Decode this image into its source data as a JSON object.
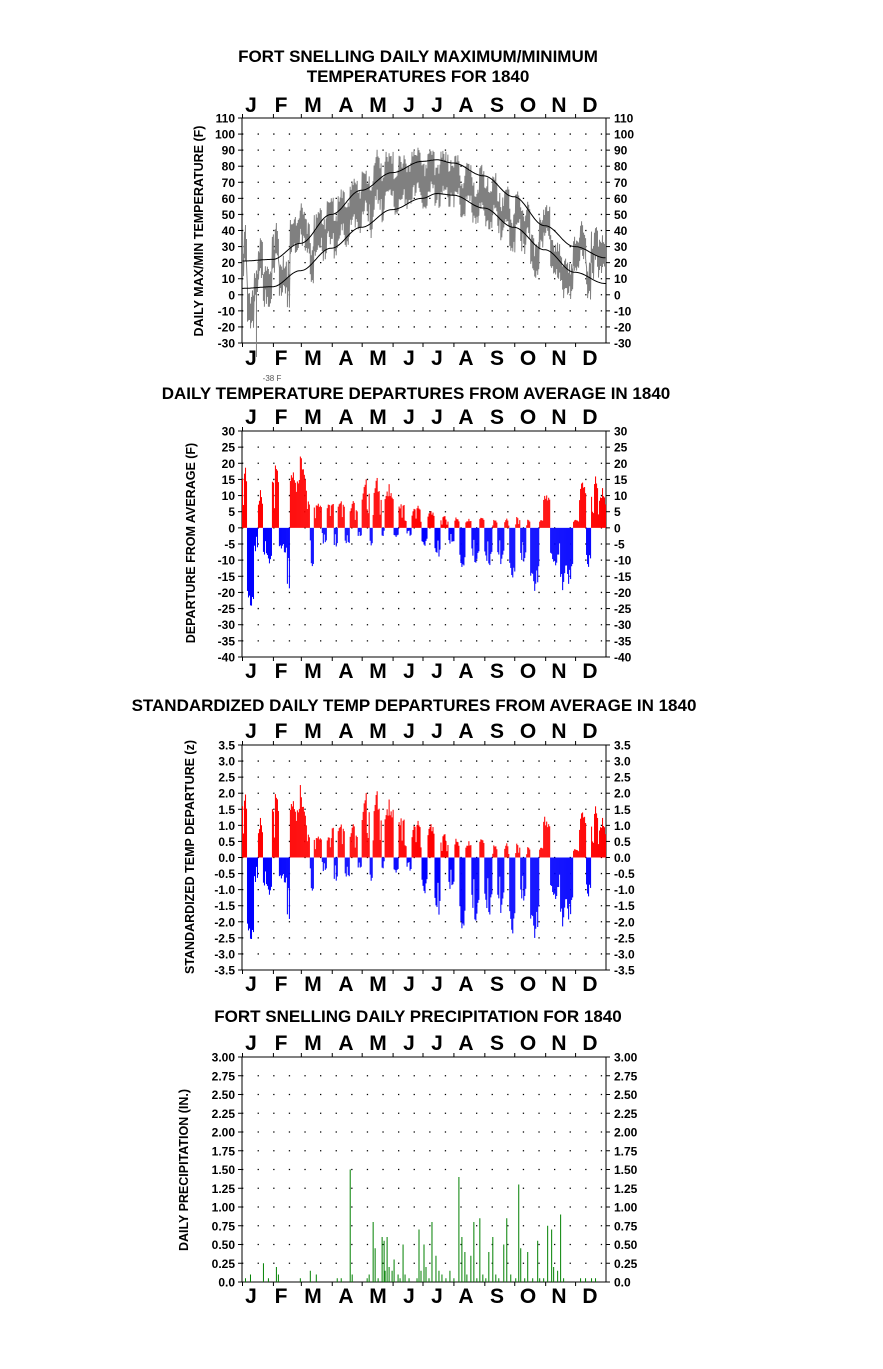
{
  "months": [
    "J",
    "F",
    "M",
    "A",
    "M",
    "J",
    "J",
    "A",
    "S",
    "O",
    "N",
    "D"
  ],
  "month_colors": {
    "frame": "#000000",
    "grid": "#000000"
  },
  "chart_data": [
    {
      "type": "line",
      "title_line1": "FORT SNELLING DAILY MAXIMUM/MINIMUM",
      "title_line2": "TEMPERATURES FOR 1840",
      "ylabel": "DAILY MAX/MIN TEMPERATURE (F)",
      "ylim": [
        -30,
        110
      ],
      "yticks": [
        110,
        100,
        90,
        80,
        70,
        60,
        50,
        40,
        30,
        20,
        10,
        0,
        -10,
        -20,
        -30
      ],
      "ytick_labels": [
        "110",
        "100",
        "90",
        "80",
        "70",
        "60",
        "50",
        "40",
        "30",
        "20",
        "10",
        "0",
        "-10",
        "-20",
        "-30"
      ],
      "annotation": "-38 F",
      "series": [
        {
          "color": "#808080",
          "normal_high_anchors": [
            [
              1,
              21
            ],
            [
              31,
              22
            ],
            [
              59,
              32
            ],
            [
              90,
              50
            ],
            [
              120,
              65
            ],
            [
              151,
              76
            ],
            [
              181,
              83
            ],
            [
              196,
              84
            ],
            [
              212,
              82
            ],
            [
              243,
              74
            ],
            [
              273,
              61
            ],
            [
              304,
              43
            ],
            [
              334,
              30
            ],
            [
              365,
              23
            ]
          ],
          "normal_low_anchors": [
            [
              1,
              4
            ],
            [
              31,
              5
            ],
            [
              59,
              15
            ],
            [
              90,
              29
            ],
            [
              120,
              42
            ],
            [
              151,
              53
            ],
            [
              181,
              60
            ],
            [
              196,
              63
            ],
            [
              212,
              62
            ],
            [
              243,
              54
            ],
            [
              273,
              42
            ],
            [
              304,
              28
            ],
            [
              334,
              14
            ],
            [
              365,
              7
            ]
          ]
        },
        {
          "color": "#000000"
        }
      ]
    },
    {
      "type": "bar",
      "title": "DAILY TEMPERATURE DEPARTURES FROM AVERAGE IN 1840",
      "ylabel": "DEPARTURE FROM AVERAGE (F)",
      "ylim": [
        -40,
        30
      ],
      "ytick_labels": [
        "30",
        "25",
        "20",
        "15",
        "10",
        "5",
        "0",
        "-5",
        "-10",
        "-15",
        "-20",
        "-25",
        "-30",
        "-35",
        "-40"
      ],
      "positive_color": "#ff0000",
      "negative_color": "#0000ff",
      "departure_runs": [
        [
          1,
          5,
          "+",
          10,
          21
        ],
        [
          6,
          12,
          "-",
          12,
          31
        ],
        [
          13,
          16,
          "-",
          3,
          8
        ],
        [
          17,
          21,
          "+",
          4,
          12
        ],
        [
          22,
          26,
          "-",
          4,
          12
        ],
        [
          27,
          30,
          "-",
          5,
          14
        ],
        [
          31,
          37,
          "+",
          8,
          22
        ],
        [
          38,
          42,
          "-",
          3,
          8
        ],
        [
          43,
          45,
          "-",
          3,
          10
        ],
        [
          46,
          48,
          "-",
          5,
          29
        ],
        [
          49,
          54,
          "+",
          8,
          20
        ],
        [
          55,
          65,
          "+",
          6,
          24
        ],
        [
          66,
          68,
          "+",
          3,
          10
        ],
        [
          69,
          72,
          "-",
          6,
          16
        ],
        [
          73,
          80,
          "+",
          3,
          10
        ],
        [
          81,
          85,
          "-",
          2,
          6
        ],
        [
          86,
          92,
          "+",
          3,
          11
        ],
        [
          93,
          96,
          "-",
          2,
          8
        ],
        [
          97,
          103,
          "+",
          4,
          10
        ],
        [
          104,
          108,
          "-",
          2,
          7
        ],
        [
          109,
          116,
          "+",
          3,
          9
        ],
        [
          117,
          120,
          "-",
          1,
          4
        ],
        [
          121,
          128,
          "+",
          5,
          17
        ],
        [
          129,
          131,
          "-",
          2,
          6
        ],
        [
          132,
          140,
          "+",
          5,
          16
        ],
        [
          141,
          143,
          "-",
          1,
          3
        ],
        [
          144,
          152,
          "+",
          4,
          14
        ],
        [
          153,
          157,
          "-",
          1,
          4
        ],
        [
          158,
          165,
          "+",
          3,
          10
        ],
        [
          166,
          170,
          "-",
          1,
          3
        ],
        [
          171,
          180,
          "+",
          2,
          8
        ],
        [
          181,
          186,
          "-",
          2,
          6
        ],
        [
          187,
          193,
          "+",
          2,
          6
        ],
        [
          194,
          199,
          "-",
          4,
          11
        ],
        [
          200,
          207,
          "+",
          1,
          4
        ],
        [
          208,
          213,
          "-",
          2,
          6
        ],
        [
          214,
          218,
          "+",
          1,
          4
        ],
        [
          219,
          224,
          "-",
          5,
          14
        ],
        [
          225,
          230,
          "+",
          1,
          3
        ],
        [
          231,
          238,
          "-",
          3,
          12
        ],
        [
          239,
          243,
          "+",
          1,
          4
        ],
        [
          244,
          251,
          "-",
          4,
          15
        ],
        [
          252,
          256,
          "+",
          1,
          3
        ],
        [
          257,
          263,
          "-",
          3,
          12
        ],
        [
          264,
          268,
          "+",
          1,
          3
        ],
        [
          269,
          274,
          "-",
          6,
          21
        ],
        [
          275,
          279,
          "+",
          1,
          4
        ],
        [
          280,
          285,
          "-",
          4,
          12
        ],
        [
          286,
          289,
          "+",
          1,
          3
        ],
        [
          290,
          298,
          "-",
          6,
          23
        ],
        [
          299,
          302,
          "+",
          1,
          3
        ],
        [
          303,
          309,
          "+",
          4,
          13
        ],
        [
          310,
          318,
          "-",
          4,
          13
        ],
        [
          319,
          325,
          "-",
          6,
          21
        ],
        [
          326,
          332,
          "-",
          4,
          20
        ],
        [
          333,
          338,
          "+",
          1,
          3
        ],
        [
          339,
          345,
          "+",
          5,
          16
        ],
        [
          346,
          350,
          "-",
          3,
          14
        ],
        [
          351,
          358,
          "+",
          5,
          17
        ],
        [
          359,
          365,
          "+",
          4,
          13
        ]
      ]
    },
    {
      "type": "bar",
      "title": "STANDARDIZED DAILY TEMP DEPARTURES FROM AVERAGE IN 1840",
      "ylabel": "STANDARDIZED TEMP DEPARTURE (z)",
      "ylim": [
        -3.5,
        3.5
      ],
      "ytick_labels": [
        "3.5",
        "3.0",
        "2.5",
        "2.0",
        "1.5",
        "1.0",
        "0.5",
        "0.0",
        "-0.5",
        "-1.0",
        "-1.5",
        "-2.0",
        "-2.5",
        "-3.0",
        "-3.5"
      ],
      "positive_color": "#ff0000",
      "negative_color": "#0000ff",
      "z_divisor_by_month": [
        9.5,
        9.8,
        11.5,
        8.0,
        7.5,
        6.0,
        5.0,
        5.5,
        6.5,
        7.8,
        9.0,
        10.0
      ]
    },
    {
      "type": "bar",
      "title": "FORT SNELLING DAILY PRECIPITATION FOR 1840",
      "ylabel": "DAILY PRECIPITATION (IN.)",
      "ylim": [
        0,
        3
      ],
      "ytick_labels": [
        "3.00",
        "2.75",
        "2.50",
        "2.25",
        "2.00",
        "1.75",
        "1.50",
        "1.25",
        "1.00",
        "0.75",
        "0.50",
        "0.25",
        "0.0"
      ],
      "color": "#008000",
      "values_by_day": [
        [
          4,
          0.05
        ],
        [
          9,
          0.1
        ],
        [
          22,
          0.25
        ],
        [
          27,
          0.05
        ],
        [
          35,
          0.2
        ],
        [
          37,
          0.1
        ],
        [
          59,
          0.05
        ],
        [
          69,
          0.15
        ],
        [
          75,
          0.1
        ],
        [
          96,
          0.05
        ],
        [
          100,
          0.05
        ],
        [
          109,
          1.5
        ],
        [
          111,
          0.1
        ],
        [
          126,
          0.05
        ],
        [
          128,
          0.1
        ],
        [
          132,
          0.8
        ],
        [
          134,
          0.45
        ],
        [
          137,
          0.05
        ],
        [
          141,
          0.6
        ],
        [
          143,
          0.55
        ],
        [
          144,
          0.15
        ],
        [
          146,
          0.6
        ],
        [
          148,
          0.2
        ],
        [
          151,
          0.15
        ],
        [
          153,
          0.3
        ],
        [
          157,
          0.1
        ],
        [
          159,
          0.05
        ],
        [
          162,
          0.5
        ],
        [
          164,
          0.1
        ],
        [
          168,
          0.05
        ],
        [
          176,
          0.05
        ],
        [
          178,
          0.7
        ],
        [
          180,
          0.15
        ],
        [
          183,
          0.5
        ],
        [
          185,
          0.2
        ],
        [
          188,
          0.05
        ],
        [
          191,
          0.8
        ],
        [
          195,
          0.35
        ],
        [
          198,
          0.15
        ],
        [
          201,
          0.1
        ],
        [
          205,
          0.05
        ],
        [
          209,
          0.15
        ],
        [
          213,
          0.05
        ],
        [
          218,
          1.4
        ],
        [
          221,
          0.6
        ],
        [
          224,
          0.4
        ],
        [
          226,
          0.1
        ],
        [
          230,
          0.35
        ],
        [
          233,
          0.8
        ],
        [
          236,
          0.05
        ],
        [
          239,
          0.85
        ],
        [
          242,
          0.1
        ],
        [
          245,
          0.05
        ],
        [
          248,
          0.4
        ],
        [
          252,
          0.6
        ],
        [
          255,
          0.1
        ],
        [
          258,
          0.05
        ],
        [
          263,
          0.5
        ],
        [
          266,
          0.85
        ],
        [
          270,
          0.1
        ],
        [
          275,
          0.05
        ],
        [
          278,
          1.3
        ],
        [
          280,
          0.45
        ],
        [
          284,
          0.05
        ],
        [
          287,
          0.4
        ],
        [
          292,
          0.05
        ],
        [
          297,
          0.55
        ],
        [
          299,
          0.05
        ],
        [
          303,
          0.05
        ],
        [
          307,
          0.75
        ],
        [
          311,
          0.7
        ],
        [
          313,
          0.2
        ],
        [
          317,
          0.15
        ],
        [
          320,
          0.9
        ],
        [
          323,
          0.05
        ],
        [
          340,
          0.05
        ],
        [
          345,
          0.05
        ],
        [
          351,
          0.05
        ],
        [
          355,
          0.05
        ]
      ]
    }
  ]
}
